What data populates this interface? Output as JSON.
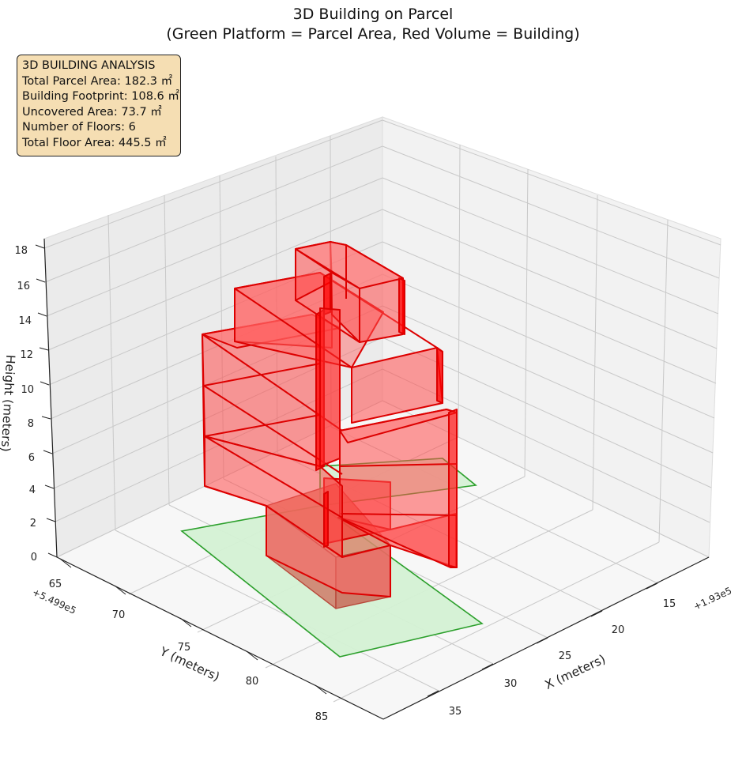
{
  "chart_data": {
    "type": "3d-bar",
    "title": "3D Building on Parcel",
    "subtitle": "(Green Platform = Parcel Area, Red Volume = Building)",
    "xlabel": "X (meters)",
    "ylabel": "Y (meters)",
    "zlabel": "Height (meters)",
    "x_offset": "+1.93e5",
    "y_offset": "+5.499e5",
    "x_ticks": [
      "15",
      "20",
      "25",
      "30",
      "35"
    ],
    "y_ticks": [
      "65",
      "70",
      "75",
      "80",
      "85"
    ],
    "z_ticks": [
      "0",
      "2",
      "4",
      "6",
      "8",
      "10",
      "12",
      "14",
      "16",
      "18"
    ],
    "grid": true,
    "series": [
      {
        "name": "Green Platform = Parcel Area",
        "color": "#2ca02c",
        "fill": "#d4f1d4"
      },
      {
        "name": "Red Volume = Building",
        "color": "#dd0000",
        "fill": "#ff4d4d"
      }
    ]
  },
  "info_box": {
    "line1": "3D BUILDING ANALYSIS",
    "line2": "Total Parcel Area: 182.3 ㎡",
    "line3": "Building Footprint: 108.6 ㎡",
    "line4": "Uncovered Area: 73.7 ㎡",
    "line5": "Number of Floors: 6",
    "line6": "Total Floor Area: 445.5 ㎡"
  }
}
